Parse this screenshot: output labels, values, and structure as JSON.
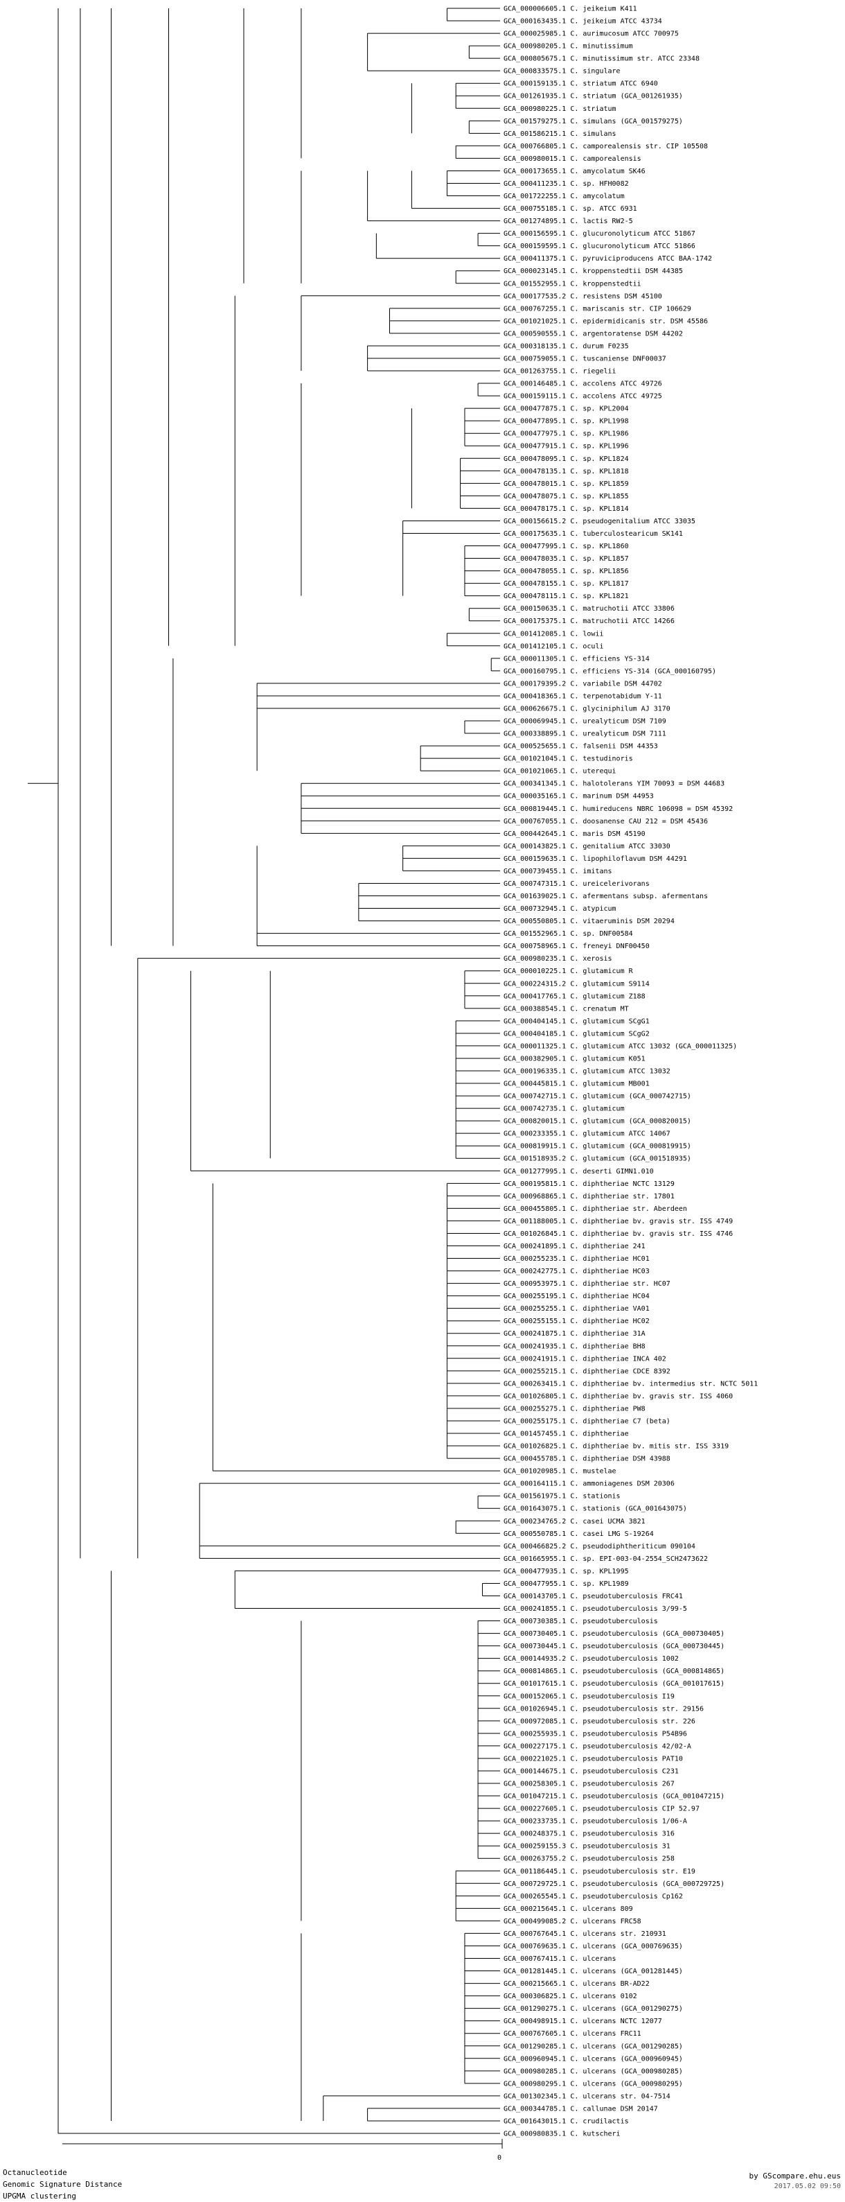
{
  "leaves": [
    "GCA_000006605.1 C. jeikeium K411",
    "GCA_000163435.1 C. jeikeium ATCC 43734",
    "GCA_000025985.1 C. aurimucosum ATCC 700975",
    "GCA_000980205.1 C. minutissimum",
    "GCA_000805675.1 C. minutissimum str. ATCC 23348",
    "GCA_000833575.1 C. singulare",
    "GCA_000159135.1 C. striatum ATCC 6940",
    "GCA_001261935.1 C. striatum (GCA_001261935)",
    "GCA_000980225.1 C. striatum",
    "GCA_001579275.1 C. simulans (GCA_001579275)",
    "GCA_001586215.1 C. simulans",
    "GCA_000766805.1 C. camporealensis str. CIP 105508",
    "GCA_000980015.1 C. camporealensis",
    "GCA_000173655.1 C. amycolatum SK46",
    "GCA_000411235.1 C. sp. HFH0082",
    "GCA_001722255.1 C. amycolatum",
    "GCA_000755185.1 C. sp. ATCC 6931",
    "GCA_001274895.1 C. lactis RW2-5",
    "GCA_000156595.1 C. glucuronolyticum ATCC 51867",
    "GCA_000159595.1 C. glucuronolyticum ATCC 51866",
    "GCA_000411375.1 C. pyruviciproducens ATCC BAA-1742",
    "GCA_000023145.1 C. kroppenstedtii DSM 44385",
    "GCA_001552955.1 C. kroppenstedtii",
    "GCA_000177535.2 C. resistens DSM 45100",
    "GCA_000767255.1 C. mariscanis str. CIP 106629",
    "GCA_001021025.1 C. epidermidicanis str. DSM 45586",
    "GCA_000590555.1 C. argentoratense DSM 44202",
    "GCA_000318135.1 C. durum F0235",
    "GCA_000759055.1 C. tuscaniense DNF00037",
    "GCA_001263755.1 C. riegelii",
    "GCA_000146485.1 C. accolens ATCC 49726",
    "GCA_000159115.1 C. accolens ATCC 49725",
    "GCA_000477875.1 C. sp. KPL2004",
    "GCA_000477895.1 C. sp. KPL1998",
    "GCA_000477975.1 C. sp. KPL1986",
    "GCA_000477915.1 C. sp. KPL1996",
    "GCA_000478095.1 C. sp. KPL1824",
    "GCA_000478135.1 C. sp. KPL1818",
    "GCA_000478015.1 C. sp. KPL1859",
    "GCA_000478075.1 C. sp. KPL1855",
    "GCA_000478175.1 C. sp. KPL1814",
    "GCA_000156615.2 C. pseudogenitalium ATCC 33035",
    "GCA_000175635.1 C. tuberculostearicum SK141",
    "GCA_000477995.1 C. sp. KPL1860",
    "GCA_000478035.1 C. sp. KPL1857",
    "GCA_000478055.1 C. sp. KPL1856",
    "GCA_000478155.1 C. sp. KPL1817",
    "GCA_000478115.1 C. sp. KPL1821",
    "GCA_000150635.1 C. matruchotii ATCC 33806",
    "GCA_000175375.1 C. matruchotii ATCC 14266",
    "GCA_001412085.1 C. lowii",
    "GCA_001412105.1 C. oculi",
    "GCA_000011305.1 C. efficiens YS-314",
    "GCA_000160795.1 C. efficiens YS-314 (GCA_000160795)",
    "GCA_000179395.2 C. variabile DSM 44702",
    "GCA_000418365.1 C. terpenotabidum Y-11",
    "GCA_000626675.1 C. glyciniphilum AJ 3170",
    "GCA_000069945.1 C. urealyticum DSM 7109",
    "GCA_000338895.1 C. urealyticum DSM 7111",
    "GCA_000525655.1 C. falsenii DSM 44353",
    "GCA_001021045.1 C. testudinoris",
    "GCA_001021065.1 C. uterequi",
    "GCA_000341345.1 C. halotolerans YIM 70093 = DSM 44683",
    "GCA_000035165.1 C. marinum DSM 44953",
    "GCA_000819445.1 C. humireducens NBRC 106098 = DSM 45392",
    "GCA_000767055.1 C. doosanense CAU 212 = DSM 45436",
    "GCA_000442645.1 C. maris DSM 45190",
    "GCA_000143825.1 C. genitalium ATCC 33030",
    "GCA_000159635.1 C. lipophiloflavum DSM 44291",
    "GCA_000739455.1 C. imitans",
    "GCA_000747315.1 C. ureicelerivorans",
    "GCA_001639025.1 C. afermentans subsp. afermentans",
    "GCA_000732945.1 C. atypicum",
    "GCA_000550805.1 C. vitaeruminis DSM 20294",
    "GCA_001552965.1 C. sp. DNF00584",
    "GCA_000758965.1 C. freneyi DNF00450",
    "GCA_000980235.1 C. xerosis",
    "GCA_000010225.1 C. glutamicum R",
    "GCA_000224315.2 C. glutamicum S9114",
    "GCA_000417765.1 C. glutamicum Z188",
    "GCA_000388545.1 C. crenatum MT",
    "GCA_000404145.1 C. glutamicum SCgG1",
    "GCA_000404185.1 C. glutamicum SCgG2",
    "GCA_000011325.1 C. glutamicum ATCC 13032 (GCA_000011325)",
    "GCA_000382905.1 C. glutamicum K051",
    "GCA_000196335.1 C. glutamicum ATCC 13032",
    "GCA_000445815.1 C. glutamicum MB001",
    "GCA_000742715.1 C. glutamicum (GCA_000742715)",
    "GCA_000742735.1 C. glutamicum",
    "GCA_000820015.1 C. glutamicum (GCA_000820015)",
    "GCA_000233355.1 C. glutamicum ATCC 14067",
    "GCA_000819915.1 C. glutamicum (GCA_000819915)",
    "GCA_001518935.2 C. glutamicum (GCA_001518935)",
    "GCA_001277995.1 C. deserti GIMN1.010",
    "GCA_000195815.1 C. diphtheriae NCTC 13129",
    "GCA_000968865.1 C. diphtheriae str. 17801",
    "GCA_000455805.1 C. diphtheriae str. Aberdeen",
    "GCA_001188005.1 C. diphtheriae bv. gravis str. ISS 4749",
    "GCA_001026845.1 C. diphtheriae bv. gravis str. ISS 4746",
    "GCA_000241895.1 C. diphtheriae 241",
    "GCA_000255235.1 C. diphtheriae HC01",
    "GCA_000242775.1 C. diphtheriae HC03",
    "GCA_000953975.1 C. diphtheriae str. HC07",
    "GCA_000255195.1 C. diphtheriae HC04",
    "GCA_000255255.1 C. diphtheriae VA01",
    "GCA_000255155.1 C. diphtheriae HC02",
    "GCA_000241875.1 C. diphtheriae 31A",
    "GCA_000241935.1 C. diphtheriae BH8",
    "GCA_000241915.1 C. diphtheriae INCA 402",
    "GCA_000255215.1 C. diphtheriae CDCE 8392",
    "GCA_000263415.1 C. diphtheriae bv. intermedius str. NCTC 5011",
    "GCA_001026805.1 C. diphtheriae bv. gravis str. ISS 4060",
    "GCA_000255275.1 C. diphtheriae PW8",
    "GCA_000255175.1 C. diphtheriae C7 (beta)",
    "GCA_001457455.1 C. diphtheriae",
    "GCA_001026825.1 C. diphtheriae bv. mitis str. ISS 3319",
    "GCA_000455785.1 C. diphtheriae DSM 43988",
    "GCA_001020985.1 C. mustelae",
    "GCA_000164115.1 C. ammoniagenes DSM 20306",
    "GCA_001561975.1 C. stationis",
    "GCA_001643075.1 C. stationis (GCA_001643075)",
    "GCA_000234765.2 C. casei UCMA 3821",
    "GCA_000550785.1 C. casei LMG S-19264",
    "GCA_000466825.2 C. pseudodiphtheriticum 090104",
    "GCA_001665955.1 C. sp. EPI-003-04-2554_SCH2473622",
    "GCA_000477935.1 C. sp. KPL1995",
    "GCA_000477955.1 C. sp. KPL1989",
    "GCA_000143705.1 C. pseudotuberculosis FRC41",
    "GCA_000241855.1 C. pseudotuberculosis 3/99-5",
    "GCA_000730385.1 C. pseudotuberculosis",
    "GCA_000730405.1 C. pseudotuberculosis (GCA_000730405)",
    "GCA_000730445.1 C. pseudotuberculosis (GCA_000730445)",
    "GCA_000144935.2 C. pseudotuberculosis 1002",
    "GCA_000814865.1 C. pseudotuberculosis (GCA_000814865)",
    "GCA_001017615.1 C. pseudotuberculosis (GCA_001017615)",
    "GCA_000152065.1 C. pseudotuberculosis I19",
    "GCA_001026945.1 C. pseudotuberculosis str. 29156",
    "GCA_000972085.1 C. pseudotuberculosis str. 226",
    "GCA_000255935.1 C. pseudotuberculosis P54B96",
    "GCA_000227175.1 C. pseudotuberculosis 42/02-A",
    "GCA_000221025.1 C. pseudotuberculosis PAT10",
    "GCA_000144675.1 C. pseudotuberculosis C231",
    "GCA_000258305.1 C. pseudotuberculosis 267",
    "GCA_001047215.1 C. pseudotuberculosis (GCA_001047215)",
    "GCA_000227605.1 C. pseudotuberculosis CIP 52.97",
    "GCA_000233735.1 C. pseudotuberculosis 1/06-A",
    "GCA_000248375.1 C. pseudotuberculosis 316",
    "GCA_000259155.3 C. pseudotuberculosis 31",
    "GCA_000263755.2 C. pseudotuberculosis 258",
    "GCA_001186445.1 C. pseudotuberculosis str. E19",
    "GCA_000729725.1 C. pseudotuberculosis (GCA_000729725)",
    "GCA_000265545.1 C. pseudotuberculosis Cp162",
    "GCA_000215645.1 C. ulcerans 809",
    "GCA_000499085.2 C. ulcerans FRC58",
    "GCA_000767645.1 C. ulcerans str. 210931",
    "GCA_000769635.1 C. ulcerans (GCA_000769635)",
    "GCA_000767415.1 C. ulcerans",
    "GCA_001281445.1 C. ulcerans (GCA_001281445)",
    "GCA_000215665.1 C. ulcerans BR-AD22",
    "GCA_000306825.1 C. ulcerans 0102",
    "GCA_001290275.1 C. ulcerans (GCA_001290275)",
    "GCA_000498915.1 C. ulcerans NCTC 12077",
    "GCA_000767605.1 C. ulcerans FRC11",
    "GCA_001290285.1 C. ulcerans (GCA_001290285)",
    "GCA_000960945.1 C. ulcerans (GCA_000960945)",
    "GCA_000980285.1 C. ulcerans (GCA_000980285)",
    "GCA_000980295.1 C. ulcerans (GCA_000980295)",
    "GCA_001302345.1 C. ulcerans str. 04-7514",
    "GCA_000344785.1 C. callunae DSM 20147",
    "GCA_001643015.1 C. crudilactis",
    "GCA_000980835.1 C. kutscheri"
  ],
  "scale_label": "0",
  "footer": {
    "line1": "Octanucleotide",
    "line2": "Genomic Signature Distance",
    "line3": "UPGMA clustering",
    "credit": "by GScompare.ehu.eus",
    "date": "2017.05.02 09:50"
  }
}
